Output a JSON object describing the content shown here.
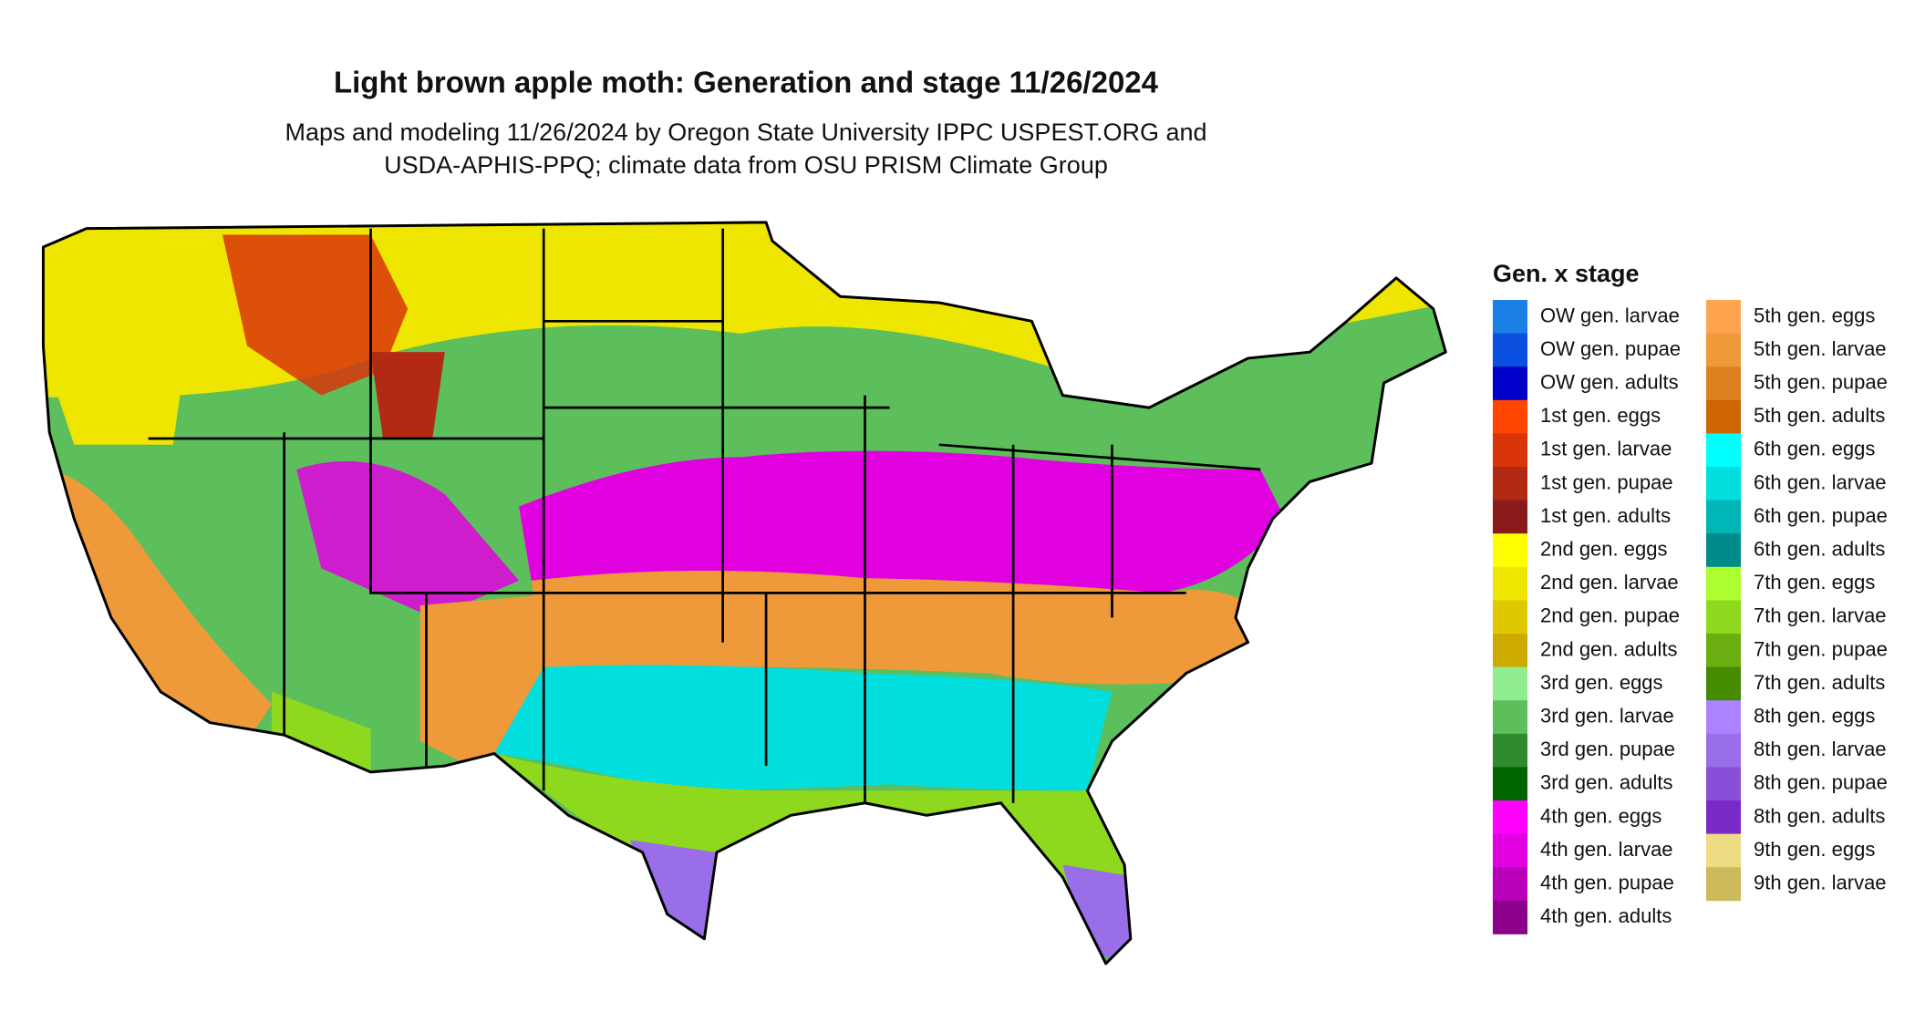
{
  "title": "Light brown apple moth: Generation and stage 11/26/2024",
  "subtitle_lines": [
    "Maps and modeling 11/26/2024 by Oregon State University IPPC USPEST.ORG and",
    "USDA-APHIS-PPQ; climate data from OSU PRISM Climate Group"
  ],
  "legend": {
    "title": "Gen. x stage",
    "items": [
      {
        "name": "OW gen. larvae",
        "color": "#1a80e6"
      },
      {
        "name": "OW gen. pupae",
        "color": "#0a4fe0"
      },
      {
        "name": "OW gen. adults",
        "color": "#0000c8"
      },
      {
        "name": "1st gen. eggs",
        "color": "#ff4500"
      },
      {
        "name": "1st gen. larvae",
        "color": "#d8350a"
      },
      {
        "name": "1st gen. pupae",
        "color": "#b22a14"
      },
      {
        "name": "1st gen. adults",
        "color": "#8b1a1a"
      },
      {
        "name": "2nd gen. eggs",
        "color": "#ffff00"
      },
      {
        "name": "2nd gen. larvae",
        "color": "#eee600"
      },
      {
        "name": "2nd gen. pupae",
        "color": "#e0c800"
      },
      {
        "name": "2nd gen. adults",
        "color": "#ccaa00"
      },
      {
        "name": "3rd gen. eggs",
        "color": "#90ee90"
      },
      {
        "name": "3rd gen. larvae",
        "color": "#5cbf5c"
      },
      {
        "name": "3rd gen. pupae",
        "color": "#2e8b2e"
      },
      {
        "name": "3rd gen. adults",
        "color": "#006400"
      },
      {
        "name": "4th gen. eggs",
        "color": "#ff00ff"
      },
      {
        "name": "4th gen. larvae",
        "color": "#e000e0"
      },
      {
        "name": "4th gen. pupae",
        "color": "#b800b8"
      },
      {
        "name": "4th gen. adults",
        "color": "#8b008b"
      },
      {
        "name": "5th gen. eggs",
        "color": "#ffa54f"
      },
      {
        "name": "5th gen. larvae",
        "color": "#ee9a3a"
      },
      {
        "name": "5th gen. pupae",
        "color": "#dd8020"
      },
      {
        "name": "5th gen. adults",
        "color": "#cd6600"
      },
      {
        "name": "6th gen. eggs",
        "color": "#00ffff"
      },
      {
        "name": "6th gen. larvae",
        "color": "#00dede"
      },
      {
        "name": "6th gen. pupae",
        "color": "#00b5b5"
      },
      {
        "name": "6th gen. adults",
        "color": "#008b8b"
      },
      {
        "name": "7th gen. eggs",
        "color": "#adff2f"
      },
      {
        "name": "7th gen. larvae",
        "color": "#8ed81e"
      },
      {
        "name": "7th gen. pupae",
        "color": "#6aae10"
      },
      {
        "name": "7th gen. adults",
        "color": "#458b00"
      },
      {
        "name": "8th gen. eggs",
        "color": "#ab82ff"
      },
      {
        "name": "8th gen. larvae",
        "color": "#9a6ee8"
      },
      {
        "name": "8th gen. pupae",
        "color": "#8a4fd8"
      },
      {
        "name": "8th gen. adults",
        "color": "#7a2ac8"
      },
      {
        "name": "9th gen. eggs",
        "color": "#eedc82"
      },
      {
        "name": "9th gen. larvae",
        "color": "#cdba5a"
      }
    ]
  }
}
